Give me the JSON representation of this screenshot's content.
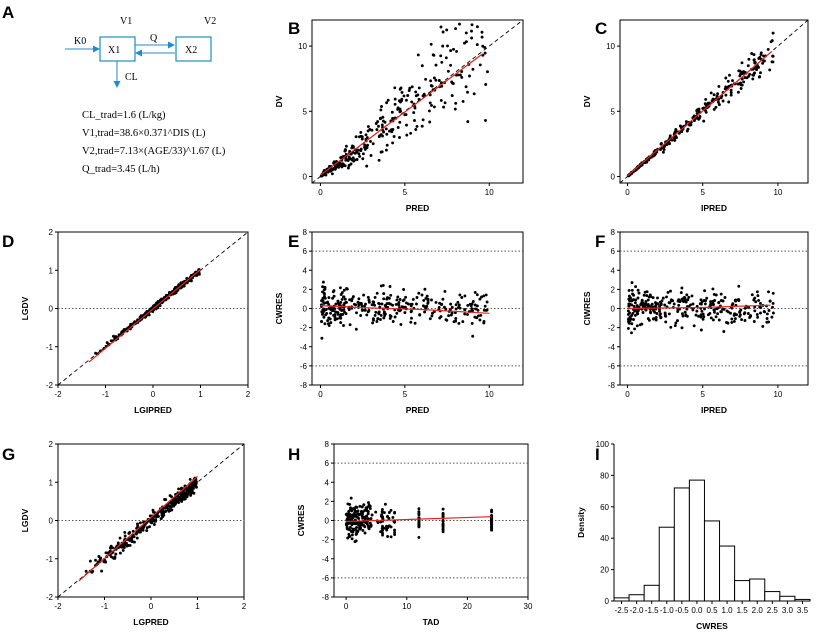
{
  "model": {
    "panel_label": "A",
    "boxes": [
      "X1",
      "X2"
    ],
    "k0": "K0",
    "v1": "V1",
    "v2": "V2",
    "q": "Q",
    "cl": "CL",
    "formulas": [
      "CL_trad=1.6 (L/kg)",
      "V1,trad=38.6×0.371^DIS (L)",
      "V2,trad=7.13×(AGE/33)^1.67 (L)",
      "Q_trad=3.45 (L/h)"
    ],
    "colors": {
      "box_line": "#1b8fc9",
      "arrow": "#1b8fc9"
    }
  },
  "chart_data": [
    {
      "id": "B",
      "type": "scatter",
      "xlabel": "PRED",
      "ylabel": "DV",
      "xlim": [
        -0.5,
        12
      ],
      "ylim": [
        -0.5,
        12
      ],
      "xticks": [
        0,
        5,
        10
      ],
      "yticks": [
        0,
        5,
        10
      ],
      "identity_line": true,
      "trend": [
        [
          0,
          0.1
        ],
        [
          9.6,
          9.4
        ]
      ],
      "scatter": {
        "seed": 11,
        "n": 330,
        "xmin": 0.05,
        "xmax": 9.9,
        "xpow": 1.5,
        "mode": "prop",
        "sd": 0.28
      }
    },
    {
      "id": "C",
      "type": "scatter",
      "xlabel": "IPRED",
      "ylabel": "DV",
      "xlim": [
        -0.5,
        12
      ],
      "ylim": [
        -0.5,
        12
      ],
      "xticks": [
        0,
        5,
        10
      ],
      "yticks": [
        0,
        5,
        10
      ],
      "identity_line": true,
      "trend": [
        [
          0,
          0.05
        ],
        [
          9.6,
          9.6
        ]
      ],
      "scatter": {
        "seed": 23,
        "n": 330,
        "xmin": 0.05,
        "xmax": 9.7,
        "xpow": 1.5,
        "mode": "prop",
        "sd": 0.06
      }
    },
    {
      "id": "D",
      "type": "scatter",
      "xlabel": "LGIPRED",
      "ylabel": "LGDV",
      "xlim": [
        -2,
        2
      ],
      "ylim": [
        -2,
        2
      ],
      "xticks": [
        -2,
        -1,
        0,
        1,
        2
      ],
      "yticks": [
        -2,
        -1,
        0,
        1,
        2
      ],
      "identity_line": true,
      "hline": 0,
      "trend": [
        [
          -1.35,
          -1.4
        ],
        [
          1.0,
          1.02
        ]
      ],
      "scatter": {
        "seed": 37,
        "n": 330,
        "xmin": -1.3,
        "xmax": 0.98,
        "xpow": 0.55,
        "mode": "add",
        "sd": 0.035
      }
    },
    {
      "id": "E",
      "type": "scatter",
      "xlabel": "PRED",
      "ylabel": "CWRES",
      "xlim": [
        -0.5,
        12
      ],
      "ylim": [
        -8,
        8
      ],
      "xticks": [
        0,
        5,
        10
      ],
      "yticks": [
        -8,
        -6,
        -4,
        -2,
        0,
        2,
        4,
        6,
        8
      ],
      "hlines": [
        -6,
        0,
        6
      ],
      "trend": [
        [
          0,
          0.3
        ],
        [
          3,
          0.05
        ],
        [
          6,
          -0.1
        ],
        [
          10,
          -0.5
        ]
      ],
      "scatter": {
        "seed": 41,
        "n": 330,
        "xmin": 0.05,
        "xmax": 9.9,
        "xpow": 1.5,
        "mode": "resid",
        "sd": 0.9
      }
    },
    {
      "id": "F",
      "type": "scatter",
      "xlabel": "IPRED",
      "ylabel": "CIWRES",
      "xlim": [
        -0.5,
        12
      ],
      "ylim": [
        -8,
        8
      ],
      "xticks": [
        0,
        5,
        10
      ],
      "yticks": [
        -8,
        -6,
        -4,
        -2,
        0,
        2,
        4,
        6,
        8
      ],
      "hlines": [
        -6,
        0,
        6
      ],
      "trend": [
        [
          0,
          0.0
        ],
        [
          5,
          0.1
        ],
        [
          9.5,
          0.35
        ]
      ],
      "scatter": {
        "seed": 53,
        "n": 330,
        "xmin": 0.05,
        "xmax": 9.7,
        "xpow": 1.5,
        "mode": "resid",
        "sd": 0.85
      }
    },
    {
      "id": "G",
      "type": "scatter",
      "xlabel": "LGPRED",
      "ylabel": "LGDV",
      "xlim": [
        -2,
        2
      ],
      "ylim": [
        -2,
        2
      ],
      "xticks": [
        -2,
        -1,
        0,
        1,
        2
      ],
      "yticks": [
        -2,
        -1,
        0,
        1,
        2
      ],
      "identity_line": true,
      "hline": 0,
      "trend": [
        [
          -1.55,
          -1.58
        ],
        [
          1.0,
          1.15
        ]
      ],
      "scatter": {
        "seed": 67,
        "n": 330,
        "xmin": -1.4,
        "xmax": 0.98,
        "xpow": 0.55,
        "mode": "add",
        "sd": 0.09
      }
    },
    {
      "id": "H",
      "type": "scatter",
      "xlabel": "TAD",
      "ylabel": "CWRES",
      "xlim": [
        -2,
        30
      ],
      "ylim": [
        -8,
        8
      ],
      "xticks": [
        0,
        10,
        20,
        30
      ],
      "yticks": [
        -8,
        -6,
        -4,
        -2,
        0,
        2,
        4,
        6,
        8
      ],
      "hlines": [
        -6,
        0,
        6
      ],
      "trend": [
        [
          0,
          -0.1
        ],
        [
          24,
          0.4
        ]
      ],
      "scatter": {
        "seed": 79,
        "n": 300,
        "mode": "tad",
        "sd": 0.9
      }
    },
    {
      "id": "I",
      "type": "bar",
      "xlabel": "CWRES",
      "ylabel": "Density",
      "categories": [
        "-2.5",
        "-2.0",
        "-1.5",
        "-1.0",
        "-0.5",
        "0.0",
        "0.5",
        "1.0",
        "1.5",
        "2.0",
        "2.5",
        "3.0",
        "3.5"
      ],
      "values": [
        2,
        4,
        10,
        47,
        72,
        77,
        51,
        35,
        13,
        14,
        6,
        3,
        1
      ],
      "ylim": [
        0,
        100
      ],
      "yticks": [
        0,
        20,
        40,
        60,
        80,
        100
      ]
    }
  ]
}
